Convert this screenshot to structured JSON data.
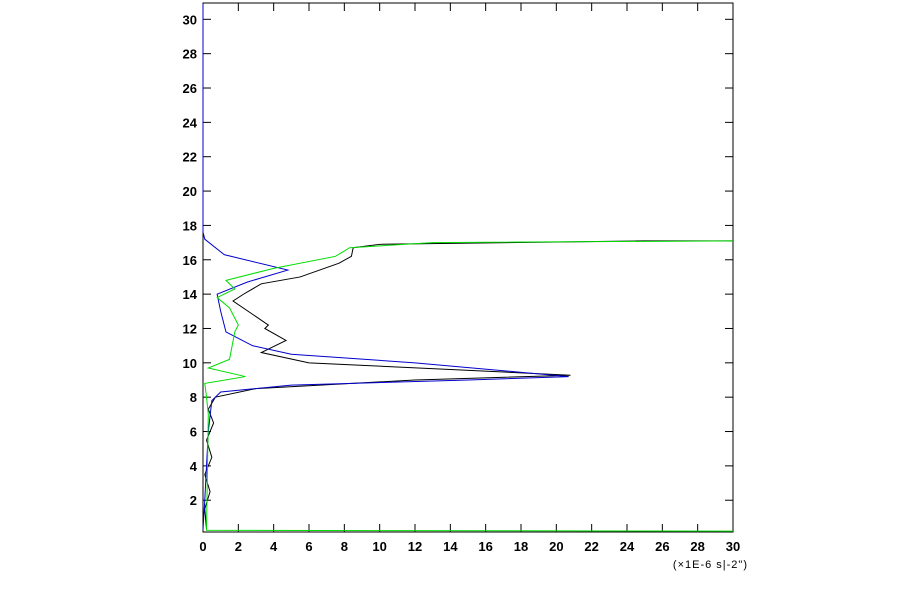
{
  "chart_data": {
    "type": "line",
    "xlabel": "(×1E-6 s|-2\")",
    "xlim": [
      0,
      30
    ],
    "xticks": [
      0,
      2,
      4,
      6,
      8,
      10,
      12,
      14,
      16,
      18,
      20,
      22,
      24,
      26,
      28,
      30
    ],
    "ylim": [
      0.15,
      30.95
    ],
    "yticks": [
      2,
      4,
      6,
      8,
      10,
      12,
      14,
      16,
      18,
      20,
      22,
      24,
      26,
      28,
      30
    ],
    "series": [
      {
        "color": "#000000",
        "x": [
          0.2,
          0.1,
          0.4,
          0.1,
          0.5,
          0.2,
          0.6,
          0.3,
          0.7,
          3,
          12,
          20.8,
          6,
          3.3,
          4.7,
          3.5,
          3.7,
          1.7,
          2.3,
          3.3,
          5.5,
          7.7,
          8.4,
          8.5,
          10,
          25,
          30
        ],
        "y": [
          0.3,
          1.5,
          2.5,
          3.5,
          4.5,
          5.5,
          6.5,
          7.3,
          8,
          8.5,
          9,
          9.28,
          10,
          10.6,
          11.3,
          12,
          12.2,
          13.6,
          14,
          14.6,
          15,
          15.8,
          16.2,
          16.7,
          16.9,
          17.1,
          17.1
        ]
      },
      {
        "color": "#0000cc",
        "x": [
          0,
          0.1,
          0.2,
          0.3,
          0.5,
          1,
          5,
          15,
          20.7,
          18.5,
          12,
          5,
          2.8,
          1.3,
          1.0,
          0.8,
          2.5,
          4.8,
          1.2,
          0.1,
          0,
          0
        ],
        "y": [
          0.3,
          2,
          4,
          6,
          7.8,
          8.3,
          8.7,
          9.0,
          9.2,
          9.4,
          10.0,
          10.5,
          11.0,
          11.8,
          13.0,
          14.0,
          14.7,
          15.4,
          16.3,
          17.2,
          17.6,
          30.9
        ]
      },
      {
        "color": "#00dd00",
        "x": [
          30,
          0.2,
          0.3,
          0.2,
          0.1,
          2.4,
          0.3,
          1.5,
          1.8,
          2,
          1.5,
          0.8,
          1.8,
          1.3,
          4,
          7.5,
          8.3,
          13,
          30
        ],
        "y": [
          0.2,
          0.25,
          7,
          8,
          8.8,
          9.2,
          9.7,
          10.2,
          11.8,
          12.2,
          13.2,
          13.8,
          14.3,
          14.8,
          15.5,
          16.2,
          16.7,
          17.0,
          17.1
        ]
      }
    ]
  }
}
